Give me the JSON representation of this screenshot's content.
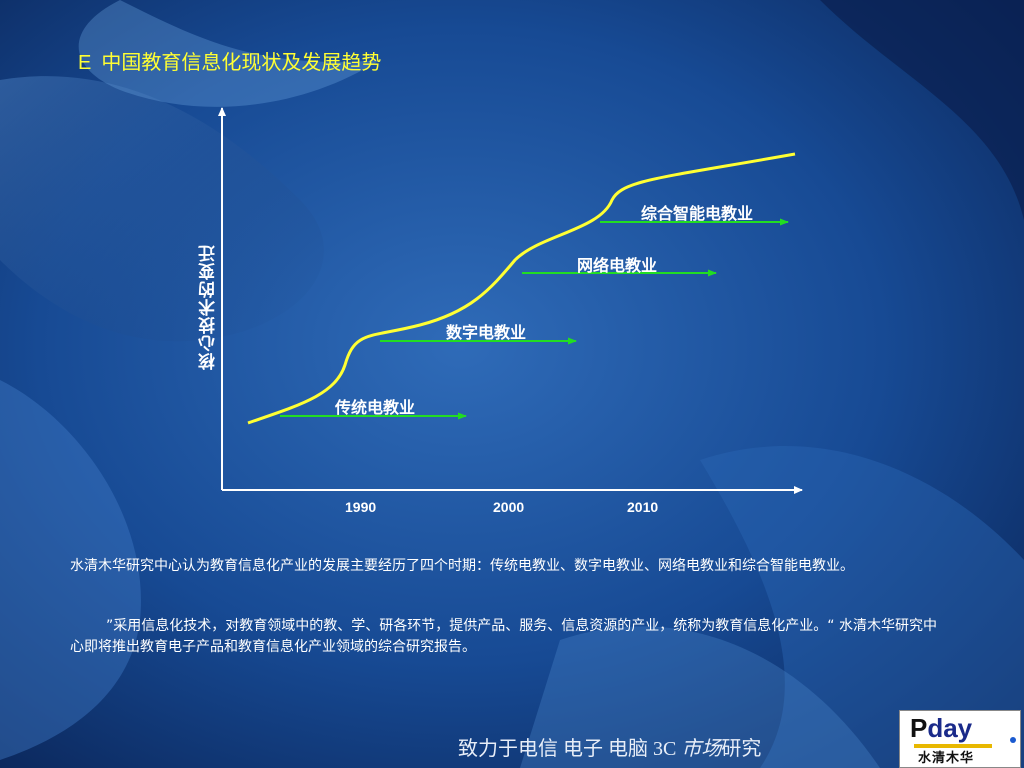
{
  "slide": {
    "title_letter": "E",
    "title": "中国教育信息化现状及发展趋势"
  },
  "diagram": {
    "y_axis_label": "核心技术的变迁",
    "years": [
      "1990",
      "2000",
      "2010"
    ],
    "stages": [
      "传统电教业",
      "数字电教业",
      "网络电教业",
      "综合智能电教业"
    ]
  },
  "body": {
    "para1": "水清木华研究中心认为教育信息化产业的发展主要经历了四个时期：传统电教业、数字电教业、网络电教业和综合智能电教业。",
    "para2": "”采用信息化技术，对教育领域中的教、学、研各环节，提供产品、服务、信息资源的产业，统称为教育信息化产业。“    水清木华研究中心即将推出教育电子产品和教育信息化产业领域的综合研究报告。"
  },
  "footer": {
    "slogan_a": "致力于电信  电子  电脑  3C  ",
    "slogan_italic": "市场",
    "slogan_b": "研究",
    "logo_p": "P",
    "logo_day": "day",
    "logo_cn": "水清木华"
  },
  "colors": {
    "title": "#ffff33",
    "curve": "#ffff33",
    "arrows": "#22dd22",
    "axes": "#ffffff"
  }
}
